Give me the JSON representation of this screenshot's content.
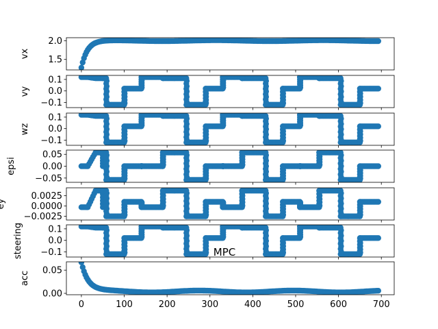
{
  "figure_title": "MPC",
  "series_color": "#1f77b4",
  "chart_data": [
    {
      "type": "scatter",
      "ylabel": "vx",
      "profile": "vx",
      "ylim": [
        1.22,
        2.08
      ],
      "yticks": [
        1.5,
        2.0
      ],
      "ytick_labels": [
        "1.5",
        "2.0"
      ],
      "xlim": [
        -35,
        730
      ],
      "xticks": [
        0,
        100,
        200,
        300,
        400,
        500,
        600,
        700
      ],
      "x": [
        0,
        693
      ]
    },
    {
      "type": "scatter",
      "ylabel": "vy",
      "profile": "wave",
      "ylim": [
        -0.145,
        0.135
      ],
      "yticks": [
        -0.1,
        0.0,
        0.1
      ],
      "ytick_labels": [
        "−0.1",
        "0.0",
        "0.1"
      ],
      "levels": [
        0.12,
        0.11,
        -0.12,
        0.02
      ],
      "xlim": [
        -35,
        730
      ],
      "xticks": [
        0,
        100,
        200,
        300,
        400,
        500,
        600,
        700
      ],
      "x": [
        0,
        693
      ]
    },
    {
      "type": "scatter",
      "ylabel": "wz",
      "profile": "wave",
      "ylim": [
        -0.145,
        0.135
      ],
      "yticks": [
        -0.1,
        0.0,
        0.1
      ],
      "ytick_labels": [
        "−0.1",
        "0.0",
        "0.1"
      ],
      "levels": [
        0.12,
        0.11,
        -0.12,
        0.02
      ],
      "xlim": [
        -35,
        730
      ],
      "xticks": [
        0,
        100,
        200,
        300,
        400,
        500,
        600,
        700
      ],
      "x": [
        0,
        693
      ]
    },
    {
      "type": "scatter",
      "ylabel": "epsi",
      "profile": "wave",
      "ylim": [
        -0.068,
        0.068
      ],
      "yticks": [
        -0.05,
        0.0,
        0.05
      ],
      "ytick_labels": [
        "−0.05",
        "0.00",
        "0.05"
      ],
      "levels": [
        0.0,
        0.058,
        -0.058,
        0.0
      ],
      "xlim": [
        -35,
        730
      ],
      "xticks": [
        0,
        100,
        200,
        300,
        400,
        500,
        600,
        700
      ],
      "x": [
        0,
        693
      ]
    },
    {
      "type": "scatter",
      "ylabel": "ey",
      "profile": "wave",
      "ylim": [
        -0.0034,
        0.0044
      ],
      "yticks": [
        -0.0025,
        0.0,
        0.0025
      ],
      "ytick_labels": [
        "−0.0025",
        "0.0000",
        "0.0025"
      ],
      "levels": [
        -0.0003,
        0.0037,
        -0.0025,
        0.001
      ],
      "xlim": [
        -35,
        730
      ],
      "xticks": [
        0,
        100,
        200,
        300,
        400,
        500,
        600,
        700
      ],
      "x": [
        0,
        693
      ]
    },
    {
      "type": "scatter",
      "ylabel": "steering",
      "profile": "wave",
      "ylim": [
        -0.145,
        0.135
      ],
      "yticks": [
        -0.1,
        0.0,
        0.1
      ],
      "ytick_labels": [
        "−0.1",
        "0.0",
        "0.1"
      ],
      "levels": [
        0.12,
        0.11,
        -0.12,
        0.02
      ],
      "xlim": [
        -35,
        730
      ],
      "xticks": [
        0,
        100,
        200,
        300,
        400,
        500,
        600,
        700
      ],
      "x": [
        0,
        693
      ]
    },
    {
      "type": "scatter",
      "ylabel": "acc",
      "profile": "acc",
      "ylim": [
        -0.003,
        0.068
      ],
      "yticks": [
        0.0,
        0.05
      ],
      "ytick_labels": [
        "0.00",
        "0.05"
      ],
      "xlim": [
        -35,
        730
      ],
      "xticks": [
        0,
        100,
        200,
        300,
        400,
        500,
        600,
        700
      ],
      "xtick_labels": [
        "0",
        "100",
        "200",
        "300",
        "400",
        "500",
        "600",
        "700"
      ],
      "x": [
        0,
        693
      ]
    }
  ]
}
